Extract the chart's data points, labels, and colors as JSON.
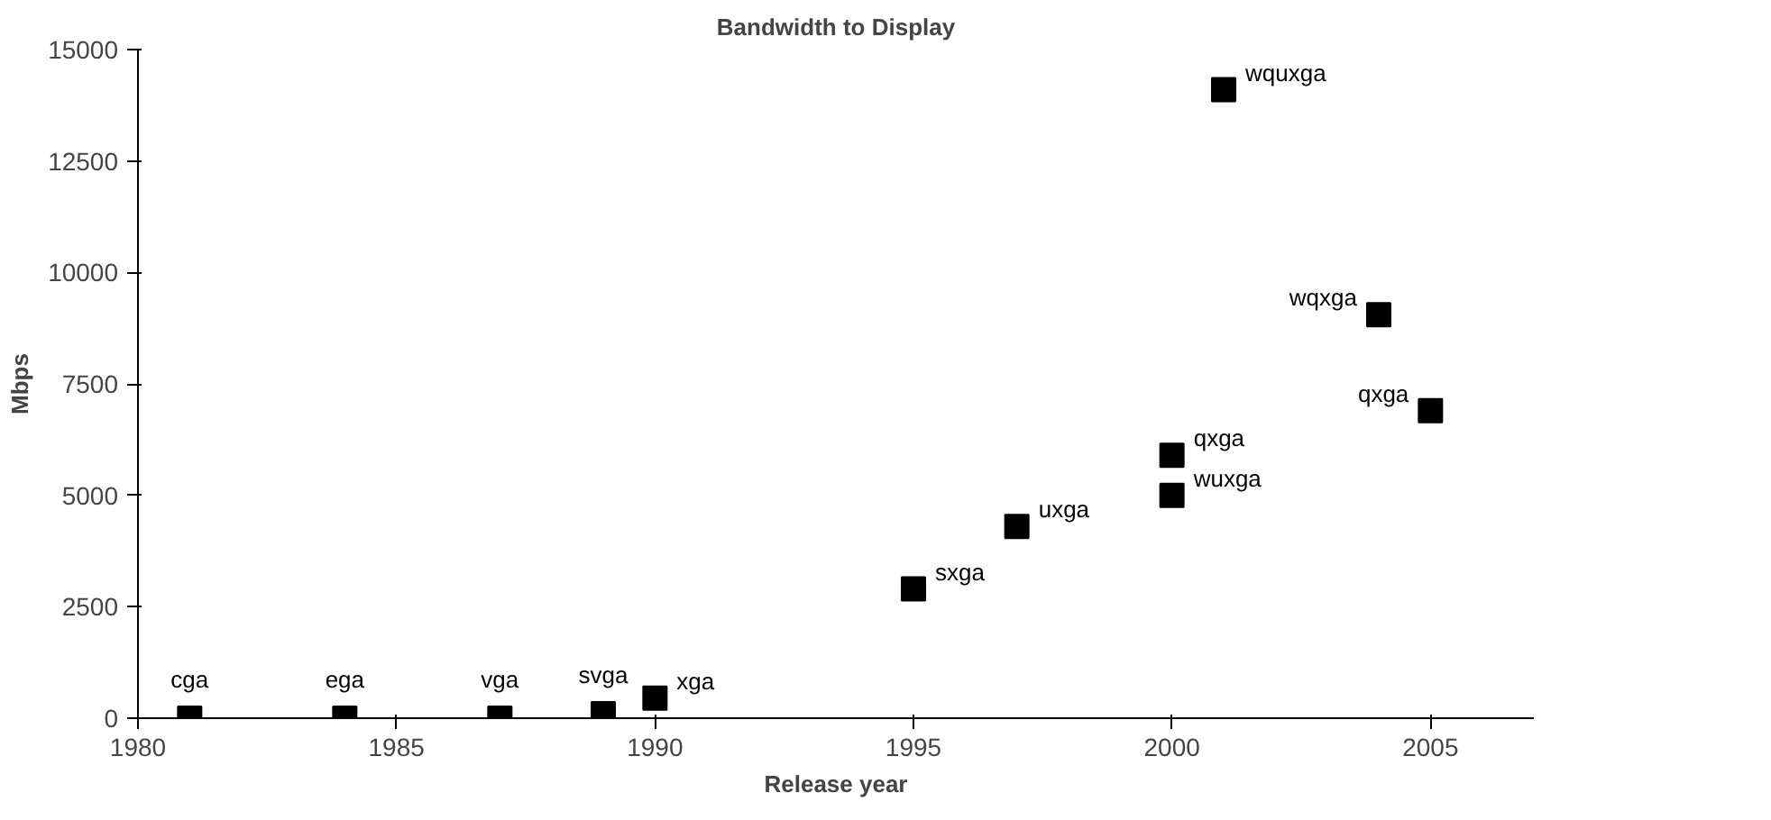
{
  "chart_data": {
    "type": "scatter",
    "title": "Bandwidth to Display",
    "xlabel": "Release year",
    "ylabel": "Mbps",
    "x": [
      1981,
      1984,
      1987,
      1989,
      1990,
      1995,
      1997,
      2000,
      2000,
      2001,
      2004,
      2005
    ],
    "values": [
      0,
      0,
      0,
      100,
      450,
      2900,
      4300,
      5900,
      5000,
      14100,
      9050,
      6900
    ],
    "color": "#000000",
    "marker": "square",
    "xlim": [
      1980,
      2007
    ],
    "xticks": [
      1980,
      1985,
      1990,
      1995,
      2000,
      2005
    ],
    "ylim": [
      0,
      15000
    ],
    "yticks": [
      0,
      2500,
      5000,
      7500,
      10000,
      12500,
      15000
    ],
    "grid": false,
    "annotations": [
      {
        "text": "cga",
        "x": 1981,
        "y": 0
      },
      {
        "text": "ega",
        "x": 1984,
        "y": 0
      },
      {
        "text": "vga",
        "x": 1987,
        "y": 0
      },
      {
        "text": "svga",
        "x": 1989,
        "y": 100
      },
      {
        "text": "xga",
        "x": 1990,
        "y": 450
      },
      {
        "text": "sxga",
        "x": 1995,
        "y": 2900
      },
      {
        "text": "uxga",
        "x": 1997,
        "y": 4300
      },
      {
        "text": "qxga",
        "x": 2000,
        "y": 5900
      },
      {
        "text": "wuxga",
        "x": 2000,
        "y": 5000
      },
      {
        "text": "wquxga",
        "x": 2001,
        "y": 14100
      },
      {
        "text": "wqxga",
        "x": 2004,
        "y": 9050
      },
      {
        "text": "qxga",
        "x": 2005,
        "y": 6900
      }
    ]
  }
}
